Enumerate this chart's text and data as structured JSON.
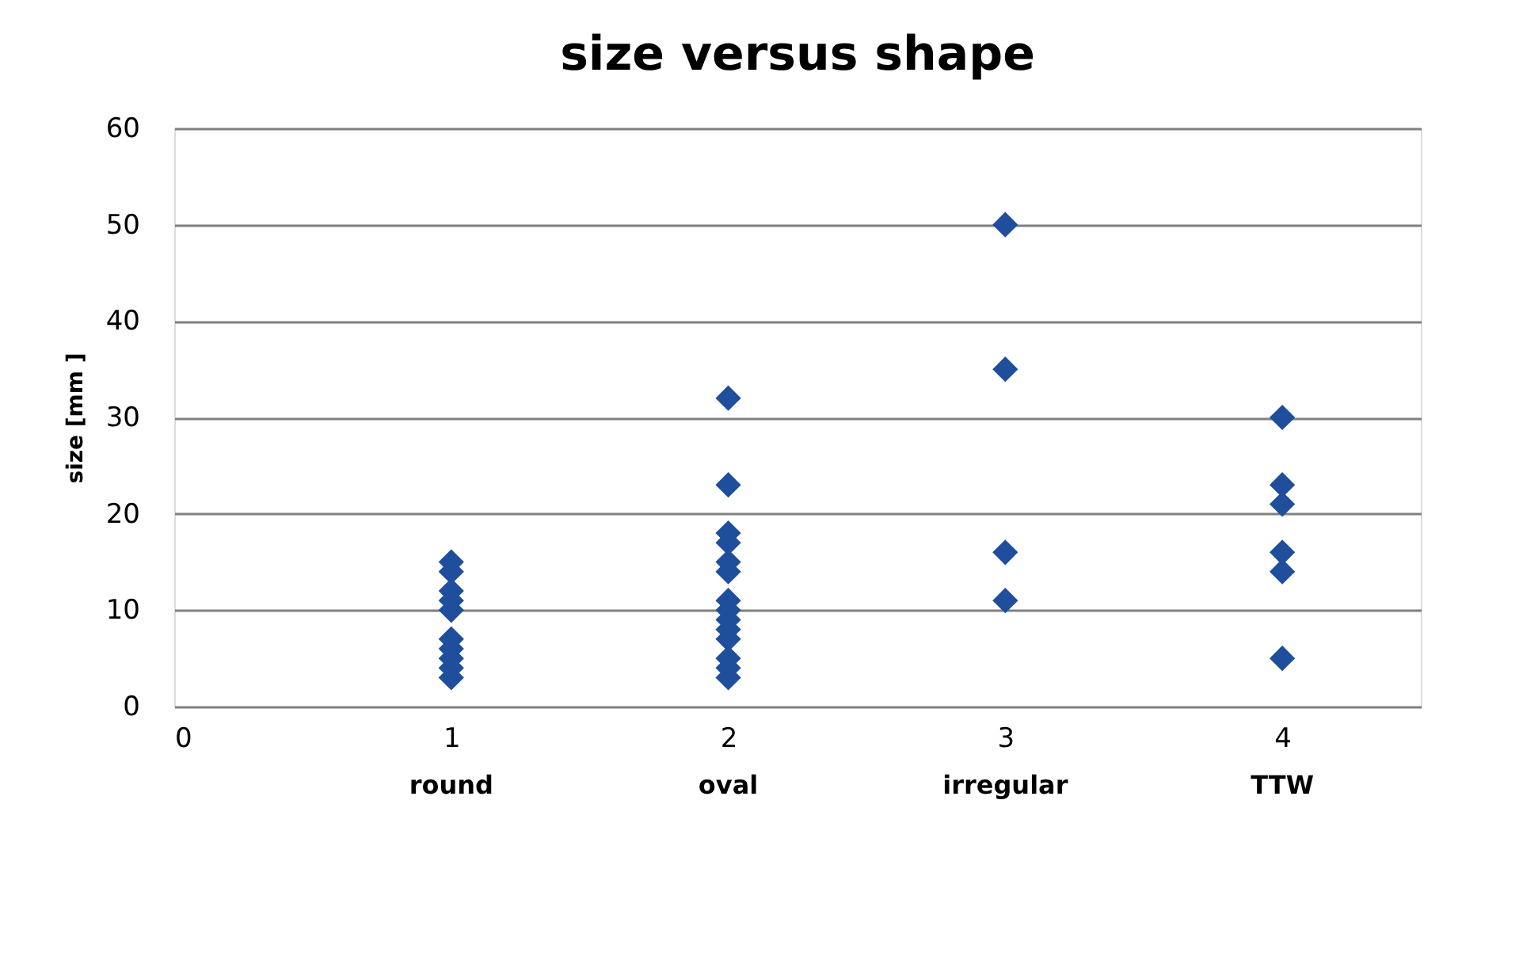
{
  "chart_data": {
    "type": "scatter",
    "title": "size versus shape",
    "ylabel": "size [mm ]",
    "x": [
      1,
      1,
      1,
      1,
      1,
      1,
      1,
      1,
      1,
      1,
      2,
      2,
      2,
      2,
      2,
      2,
      2,
      2,
      2,
      2,
      2,
      2,
      2,
      2,
      3,
      3,
      3,
      3,
      4,
      4,
      4,
      4,
      4,
      4
    ],
    "series": [
      {
        "color": "#1f4e9c",
        "values": [
          3,
          4,
          5,
          6,
          7,
          10,
          11,
          12,
          14,
          15,
          3,
          4,
          5,
          7,
          8,
          9,
          10,
          11,
          14,
          15,
          17,
          18,
          23,
          32,
          11,
          16,
          35,
          50,
          5,
          14,
          16,
          21,
          23,
          30
        ]
      }
    ],
    "marker": "diamond",
    "xlim": [
      0,
      4.5
    ],
    "xticks": [
      0,
      1,
      2,
      3,
      4
    ],
    "ylim": [
      0,
      60
    ],
    "yticks": [
      0,
      10,
      20,
      30,
      40,
      50,
      60
    ],
    "grid": "y",
    "annotations": [
      "round",
      "oval",
      "irregular",
      "TTW"
    ]
  }
}
